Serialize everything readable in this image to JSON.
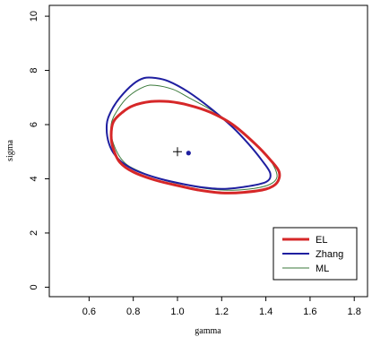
{
  "chart_data": {
    "type": "line",
    "title": "",
    "xlabel": "gamma",
    "ylabel": "sigma",
    "xlim": [
      0.42,
      1.86
    ],
    "ylim": [
      -0.35,
      10.4
    ],
    "x_ticks": [
      0.6,
      0.8,
      1.0,
      1.2,
      1.4,
      1.6,
      1.8
    ],
    "x_tick_labels": [
      "0.6",
      "0.8",
      "1.0",
      "1.2",
      "1.4",
      "1.6",
      "1.8"
    ],
    "y_ticks": [
      0,
      2,
      4,
      6,
      8,
      10
    ],
    "y_tick_labels": [
      "0",
      "2",
      "4",
      "6",
      "8",
      "10"
    ],
    "grid": false,
    "legend_position": "bottom-right",
    "series": [
      {
        "name": "EL",
        "color": "#d62728",
        "line_width": 3,
        "closed": true,
        "points": [
          [
            0.71,
            6.1
          ],
          [
            0.75,
            6.45
          ],
          [
            0.8,
            6.7
          ],
          [
            0.88,
            6.85
          ],
          [
            0.96,
            6.85
          ],
          [
            1.05,
            6.72
          ],
          [
            1.15,
            6.45
          ],
          [
            1.25,
            6.0
          ],
          [
            1.35,
            5.3
          ],
          [
            1.42,
            4.7
          ],
          [
            1.46,
            4.25
          ],
          [
            1.45,
            3.85
          ],
          [
            1.4,
            3.62
          ],
          [
            1.3,
            3.5
          ],
          [
            1.2,
            3.48
          ],
          [
            1.1,
            3.58
          ],
          [
            1.0,
            3.75
          ],
          [
            0.9,
            3.95
          ],
          [
            0.8,
            4.25
          ],
          [
            0.74,
            4.6
          ],
          [
            0.71,
            5.1
          ],
          [
            0.7,
            5.6
          ]
        ]
      },
      {
        "name": "Zhang",
        "color": "#1f1fa0",
        "line_width": 2,
        "closed": true,
        "points": [
          [
            0.68,
            6.0
          ],
          [
            0.7,
            6.5
          ],
          [
            0.74,
            7.0
          ],
          [
            0.8,
            7.5
          ],
          [
            0.85,
            7.72
          ],
          [
            0.9,
            7.72
          ],
          [
            0.96,
            7.6
          ],
          [
            1.05,
            7.2
          ],
          [
            1.15,
            6.6
          ],
          [
            1.25,
            5.9
          ],
          [
            1.32,
            5.3
          ],
          [
            1.38,
            4.7
          ],
          [
            1.42,
            4.2
          ],
          [
            1.4,
            3.88
          ],
          [
            1.3,
            3.7
          ],
          [
            1.2,
            3.63
          ],
          [
            1.1,
            3.7
          ],
          [
            1.0,
            3.85
          ],
          [
            0.9,
            4.05
          ],
          [
            0.8,
            4.35
          ],
          [
            0.73,
            4.75
          ],
          [
            0.69,
            5.3
          ]
        ]
      },
      {
        "name": "ML",
        "color": "#3b7a3b",
        "line_width": 1,
        "closed": true,
        "points": [
          [
            0.7,
            6.0
          ],
          [
            0.73,
            6.55
          ],
          [
            0.78,
            7.05
          ],
          [
            0.85,
            7.4
          ],
          [
            0.9,
            7.45
          ],
          [
            0.98,
            7.3
          ],
          [
            1.05,
            7.0
          ],
          [
            1.15,
            6.55
          ],
          [
            1.25,
            6.0
          ],
          [
            1.33,
            5.45
          ],
          [
            1.4,
            4.9
          ],
          [
            1.44,
            4.4
          ],
          [
            1.45,
            4.05
          ],
          [
            1.42,
            3.8
          ],
          [
            1.35,
            3.65
          ],
          [
            1.25,
            3.58
          ],
          [
            1.15,
            3.62
          ],
          [
            1.05,
            3.75
          ],
          [
            0.95,
            3.92
          ],
          [
            0.85,
            4.2
          ],
          [
            0.76,
            4.6
          ],
          [
            0.71,
            5.3
          ]
        ]
      }
    ],
    "markers": [
      {
        "symbol": "plus",
        "x": 1.0,
        "y": 5.0,
        "color": "#000000"
      },
      {
        "symbol": "dot",
        "x": 1.05,
        "y": 4.95,
        "color": "#1f1fa0"
      }
    ]
  }
}
